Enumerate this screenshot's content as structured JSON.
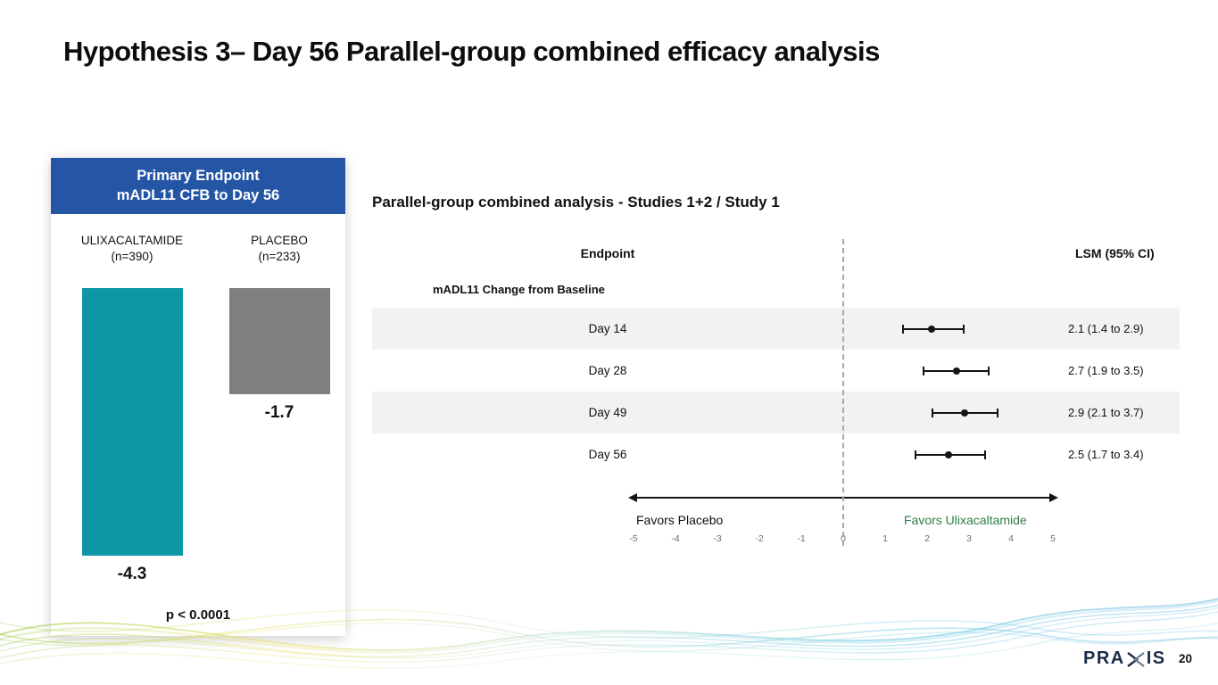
{
  "slide": {
    "title": "Hypothesis 3– Day 56 Parallel-group combined efficacy analysis",
    "page_number": "20",
    "logo": {
      "left": "PRA",
      "right": "IS"
    }
  },
  "chart_data": [
    {
      "type": "bar",
      "title": "Primary Endpoint mADL11 CFB to Day 56",
      "panel_header_line1": "Primary Endpoint",
      "panel_header_line2": "mADL11 CFB to Day 56",
      "categories": [
        "ULIXACALTAMIDE (n=390)",
        "PLACEBO (n=233)"
      ],
      "values": [
        -4.3,
        -1.7
      ],
      "groups": [
        {
          "name": "ULIXACALTAMIDE",
          "n_label": "(n=390)",
          "value": -4.3,
          "value_label": "-4.3"
        },
        {
          "name": "PLACEBO",
          "n_label": "(n=233)",
          "value": -1.7,
          "value_label": "-1.7"
        }
      ],
      "annotation": "p < 0.0001",
      "ylim": [
        -5,
        0
      ],
      "colors": {
        "header_bg": "#2456A5",
        "bar_ulixacaltamide": "#0D96A5",
        "bar_placebo": "#7F7F7F"
      }
    },
    {
      "type": "scatter",
      "subtype": "forest",
      "title": "Parallel-group combined analysis - Studies 1+2 / Study 1",
      "columns": {
        "endpoint": "Endpoint",
        "lsm": "LSM (95% CI)"
      },
      "group_label": "mADL11 Change from Baseline",
      "rows": [
        {
          "label": "Day 14",
          "estimate": 2.1,
          "ci_low": 1.4,
          "ci_high": 2.9,
          "lsm_text": "2.1 (1.4 to 2.9)"
        },
        {
          "label": "Day 28",
          "estimate": 2.7,
          "ci_low": 1.9,
          "ci_high": 3.5,
          "lsm_text": "2.7 (1.9 to 3.5)"
        },
        {
          "label": "Day 49",
          "estimate": 2.9,
          "ci_low": 2.1,
          "ci_high": 3.7,
          "lsm_text": "2.9 (2.1 to 3.7)"
        },
        {
          "label": "Day 56",
          "estimate": 2.5,
          "ci_low": 1.7,
          "ci_high": 3.4,
          "lsm_text": "2.5 (1.7 to 3.4)"
        }
      ],
      "favors_left": "Favors Placebo",
      "favors_right": "Favors Ulixacaltamide",
      "xlim": [
        -5,
        5
      ],
      "zero_line": 0,
      "axis_ticks": [
        -5,
        -4,
        -3,
        -2,
        -1,
        0,
        1,
        2,
        3,
        4,
        5
      ],
      "colors": {
        "favors_right_text": "#2E7D46"
      },
      "legend": "none",
      "grid": false
    }
  ]
}
